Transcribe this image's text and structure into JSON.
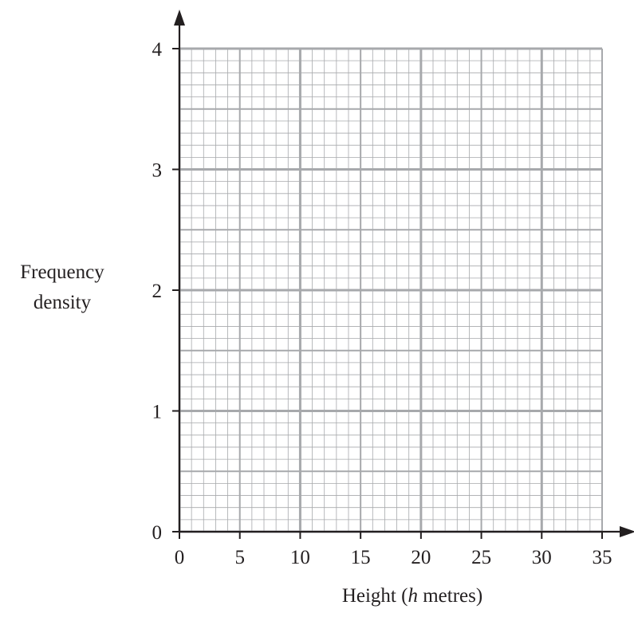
{
  "chart_data": {
    "type": "histogram",
    "title": "",
    "xlabel": "Height (h metres)",
    "xlabel_parts": {
      "prefix": "Height (",
      "var": "h",
      "suffix": " metres)"
    },
    "ylabel_lines": [
      "Frequency",
      "density"
    ],
    "xlim": [
      0,
      35
    ],
    "ylim": [
      0,
      4
    ],
    "x_ticks": [
      0,
      5,
      10,
      15,
      20,
      25,
      30,
      35
    ],
    "y_ticks": [
      0,
      1,
      2,
      3,
      4
    ],
    "grid": {
      "enabled": true,
      "x_minor_step": 1,
      "x_mid_step": 5,
      "x_major_step": 10,
      "y_minor_step": 0.1,
      "y_mid_step": 0.5,
      "y_major_step": 1
    },
    "series": [],
    "colors": {
      "axis": "#231f20",
      "grid_minor": "#a7a9ac",
      "grid_major": "#a7a9ac"
    }
  }
}
